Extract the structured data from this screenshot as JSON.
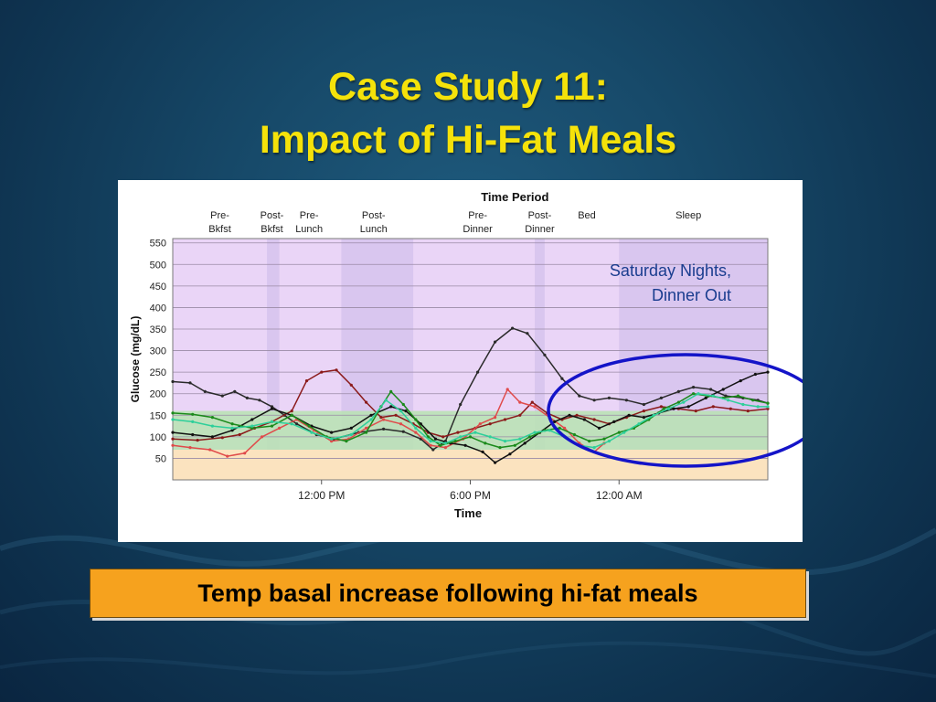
{
  "slide": {
    "title_line1": "Case Study 11:",
    "title_line2": "Impact of Hi-Fat Meals",
    "caption": "Temp basal increase following hi-fat meals",
    "annotation_line1": "Saturday Nights,",
    "annotation_line2": "Dinner Out"
  },
  "colors": {
    "title": "#f5e20a",
    "caption_bg": "#f6a21e",
    "annotation": "#1a3d8f",
    "plot_purple": "#ead5f7",
    "period_band": "#d9c6ef",
    "target_green": "#b7e3b2",
    "low_orange": "#fbe3bf",
    "highlight_ellipse": "#1414c8"
  },
  "chart_data": {
    "type": "line",
    "title": "Time Period",
    "xlabel": "Time",
    "ylabel": "Glucose (mg/dL)",
    "ylim": [
      0,
      560
    ],
    "xlim": [
      6,
      30
    ],
    "y_ticks": [
      50,
      100,
      150,
      200,
      250,
      300,
      350,
      400,
      450,
      500,
      550
    ],
    "x_ticks": [
      {
        "value": 12,
        "label": "12:00 PM"
      },
      {
        "value": 18,
        "label": "6:00 PM"
      },
      {
        "value": 24,
        "label": "12:00 AM"
      }
    ],
    "target_range": [
      70,
      160
    ],
    "low_range": [
      0,
      70
    ],
    "time_periods": [
      {
        "line1": "Pre-",
        "line2": "Bkfst",
        "center": 7.9
      },
      {
        "line1": "Post-",
        "line2": "Bkfst",
        "center": 10.0
      },
      {
        "line1": "Pre-",
        "line2": "Lunch",
        "center": 11.5
      },
      {
        "line1": "Post-",
        "line2": "Lunch",
        "center": 14.1
      },
      {
        "line1": "Pre-",
        "line2": "Dinner",
        "center": 18.3
      },
      {
        "line1": "Post-",
        "line2": "Dinner",
        "center": 20.8
      },
      {
        "line1": "Bed",
        "line2": "",
        "center": 22.7
      },
      {
        "line1": "Sleep",
        "line2": "",
        "center": 26.8
      }
    ],
    "period_bands": [
      [
        9.8,
        10.3
      ],
      [
        12.8,
        15.7
      ],
      [
        20.6,
        21.0
      ],
      [
        24.0,
        30.0
      ]
    ],
    "series": [
      {
        "color": "#2a2a2a",
        "values": [
          [
            6.0,
            228
          ],
          [
            6.7,
            225
          ],
          [
            7.3,
            205
          ],
          [
            8.0,
            195
          ],
          [
            8.5,
            205
          ],
          [
            9.0,
            190
          ],
          [
            9.5,
            185
          ],
          [
            10.0,
            170
          ],
          [
            10.5,
            150
          ],
          [
            11.0,
            130
          ],
          [
            11.8,
            105
          ],
          [
            12.5,
            95
          ],
          [
            13.5,
            110
          ],
          [
            14.5,
            118
          ],
          [
            15.3,
            112
          ],
          [
            16.0,
            95
          ],
          [
            16.5,
            70
          ],
          [
            17.0,
            90
          ],
          [
            17.6,
            175
          ],
          [
            18.3,
            250
          ],
          [
            19.0,
            320
          ],
          [
            19.7,
            352
          ],
          [
            20.3,
            340
          ],
          [
            21.0,
            290
          ],
          [
            21.7,
            235
          ],
          [
            22.4,
            195
          ],
          [
            23.0,
            185
          ],
          [
            23.6,
            190
          ],
          [
            24.3,
            185
          ],
          [
            25.0,
            175
          ],
          [
            25.7,
            190
          ],
          [
            26.4,
            205
          ],
          [
            27.0,
            215
          ],
          [
            27.7,
            210
          ],
          [
            28.3,
            195
          ],
          [
            29.0,
            190
          ],
          [
            29.6,
            185
          ],
          [
            30.0,
            178
          ]
        ]
      },
      {
        "color": "#8b1a1a",
        "values": [
          [
            6.0,
            95
          ],
          [
            7.0,
            92
          ],
          [
            8.0,
            98
          ],
          [
            8.7,
            105
          ],
          [
            9.3,
            120
          ],
          [
            10.0,
            135
          ],
          [
            10.8,
            160
          ],
          [
            11.4,
            230
          ],
          [
            12.0,
            250
          ],
          [
            12.6,
            255
          ],
          [
            13.2,
            220
          ],
          [
            13.8,
            180
          ],
          [
            14.4,
            145
          ],
          [
            15.0,
            150
          ],
          [
            15.7,
            130
          ],
          [
            16.3,
            110
          ],
          [
            16.9,
            100
          ],
          [
            17.5,
            110
          ],
          [
            18.2,
            120
          ],
          [
            18.8,
            130
          ],
          [
            19.4,
            140
          ],
          [
            20.0,
            150
          ],
          [
            20.5,
            180
          ],
          [
            21.1,
            155
          ],
          [
            21.7,
            140
          ],
          [
            22.3,
            150
          ],
          [
            23.0,
            140
          ],
          [
            23.6,
            130
          ],
          [
            24.3,
            145
          ],
          [
            25.0,
            160
          ],
          [
            25.7,
            170
          ],
          [
            26.4,
            165
          ],
          [
            27.1,
            160
          ],
          [
            27.8,
            170
          ],
          [
            28.5,
            165
          ],
          [
            29.2,
            160
          ],
          [
            30.0,
            165
          ]
        ]
      },
      {
        "color": "#e04a4a",
        "values": [
          [
            6.0,
            80
          ],
          [
            6.7,
            75
          ],
          [
            7.5,
            70
          ],
          [
            8.2,
            55
          ],
          [
            8.9,
            62
          ],
          [
            9.6,
            100
          ],
          [
            10.3,
            120
          ],
          [
            11.0,
            140
          ],
          [
            11.7,
            115
          ],
          [
            12.4,
            90
          ],
          [
            13.1,
            95
          ],
          [
            13.8,
            120
          ],
          [
            14.5,
            140
          ],
          [
            15.2,
            130
          ],
          [
            15.8,
            110
          ],
          [
            16.4,
            80
          ],
          [
            17.0,
            75
          ],
          [
            17.7,
            95
          ],
          [
            18.4,
            130
          ],
          [
            19.0,
            145
          ],
          [
            19.5,
            210
          ],
          [
            20.0,
            180
          ],
          [
            20.6,
            170
          ],
          [
            21.2,
            145
          ],
          [
            21.8,
            120
          ],
          [
            22.4,
            85
          ],
          [
            23.0,
            65
          ],
          [
            23.4,
            85
          ]
        ]
      },
      {
        "color": "#111111",
        "values": [
          [
            6.0,
            110
          ],
          [
            6.8,
            105
          ],
          [
            7.6,
            100
          ],
          [
            8.4,
            115
          ],
          [
            9.2,
            140
          ],
          [
            10.0,
            165
          ],
          [
            10.8,
            150
          ],
          [
            11.6,
            125
          ],
          [
            12.4,
            110
          ],
          [
            13.2,
            120
          ],
          [
            14.0,
            150
          ],
          [
            14.8,
            170
          ],
          [
            15.4,
            160
          ],
          [
            16.0,
            130
          ],
          [
            16.6,
            95
          ],
          [
            17.2,
            85
          ],
          [
            17.8,
            80
          ],
          [
            18.5,
            65
          ],
          [
            19.0,
            40
          ],
          [
            19.6,
            60
          ],
          [
            20.2,
            85
          ],
          [
            20.8,
            110
          ],
          [
            21.4,
            135
          ],
          [
            22.0,
            150
          ],
          [
            22.6,
            140
          ],
          [
            23.2,
            120
          ],
          [
            23.8,
            135
          ],
          [
            24.4,
            150
          ],
          [
            25.0,
            145
          ],
          [
            25.6,
            155
          ],
          [
            26.2,
            165
          ],
          [
            26.8,
            170
          ],
          [
            27.5,
            190
          ],
          [
            28.2,
            210
          ],
          [
            28.9,
            230
          ],
          [
            29.5,
            245
          ],
          [
            30.0,
            250
          ]
        ]
      },
      {
        "color": "#1a8a1a",
        "values": [
          [
            6.0,
            155
          ],
          [
            6.8,
            152
          ],
          [
            7.6,
            145
          ],
          [
            8.4,
            130
          ],
          [
            9.2,
            120
          ],
          [
            10.0,
            125
          ],
          [
            10.8,
            150
          ],
          [
            11.5,
            125
          ],
          [
            12.2,
            100
          ],
          [
            13.0,
            90
          ],
          [
            13.8,
            110
          ],
          [
            14.4,
            170
          ],
          [
            14.8,
            205
          ],
          [
            15.3,
            175
          ],
          [
            15.8,
            140
          ],
          [
            16.3,
            100
          ],
          [
            16.8,
            80
          ],
          [
            17.4,
            90
          ],
          [
            18.0,
            100
          ],
          [
            18.6,
            85
          ],
          [
            19.2,
            75
          ],
          [
            19.8,
            80
          ],
          [
            20.4,
            100
          ],
          [
            21.0,
            115
          ],
          [
            21.6,
            120
          ],
          [
            22.2,
            105
          ],
          [
            22.8,
            90
          ],
          [
            23.4,
            95
          ],
          [
            24.0,
            110
          ],
          [
            24.6,
            120
          ],
          [
            25.2,
            140
          ],
          [
            25.8,
            165
          ],
          [
            26.4,
            180
          ],
          [
            27.0,
            200
          ],
          [
            27.6,
            195
          ],
          [
            28.2,
            190
          ],
          [
            28.8,
            195
          ],
          [
            29.4,
            185
          ],
          [
            30.0,
            178
          ]
        ]
      },
      {
        "color": "#2ecf9a",
        "values": [
          [
            6.0,
            140
          ],
          [
            6.8,
            135
          ],
          [
            7.6,
            125
          ],
          [
            8.4,
            120
          ],
          [
            9.2,
            125
          ],
          [
            10.0,
            135
          ],
          [
            10.8,
            130
          ],
          [
            11.6,
            110
          ],
          [
            12.4,
            95
          ],
          [
            13.2,
            105
          ],
          [
            14.0,
            140
          ],
          [
            14.6,
            185
          ],
          [
            15.2,
            160
          ],
          [
            15.8,
            120
          ],
          [
            16.4,
            90
          ],
          [
            17.0,
            85
          ],
          [
            17.6,
            100
          ],
          [
            18.2,
            110
          ],
          [
            18.8,
            100
          ],
          [
            19.4,
            90
          ],
          [
            20.0,
            95
          ],
          [
            20.6,
            110
          ],
          [
            21.2,
            115
          ],
          [
            21.8,
            100
          ],
          [
            22.4,
            80
          ],
          [
            23.0,
            75
          ],
          [
            23.6,
            90
          ],
          [
            24.2,
            110
          ],
          [
            24.8,
            130
          ],
          [
            25.4,
            150
          ],
          [
            26.0,
            165
          ],
          [
            26.6,
            180
          ],
          [
            27.2,
            200
          ],
          [
            27.8,
            195
          ],
          [
            28.4,
            185
          ],
          [
            29.0,
            175
          ],
          [
            29.6,
            170
          ],
          [
            30.0,
            170
          ]
        ]
      }
    ]
  }
}
